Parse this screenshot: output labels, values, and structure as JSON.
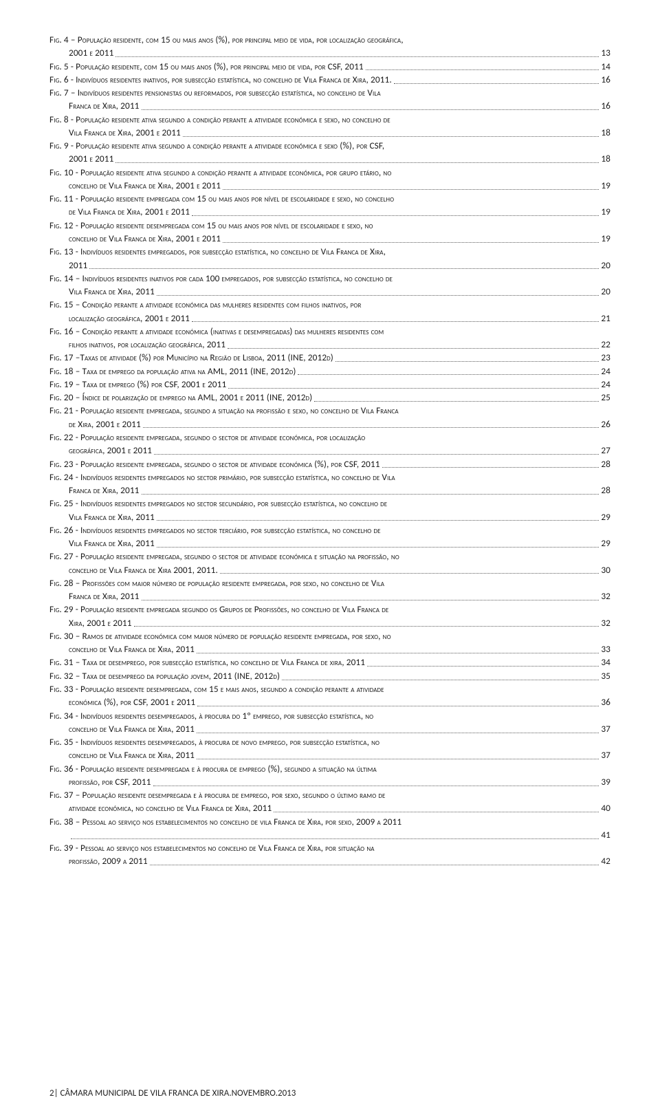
{
  "footer": {
    "page_num": "2",
    "separator": "|",
    "text": "CÂMARA MUNICIPAL DE VILA FRANCA DE XIRA.NOVEMBRO.2013"
  },
  "figures": [
    {
      "label": "Fig. 4 – População residente, com 15 ou mais anos (%), por principal meio de vida, por localização geográfica,",
      "cont": "2001 e 2011",
      "page": "13"
    },
    {
      "label": "Fig. 5 - População residente, com 15 ou mais anos (%), por principal meio de vida, por CSF, 2011",
      "page": "14"
    },
    {
      "label": "Fig. 6 - Indivíduos residentes inativos, por subsecção estatística, no concelho de Vila Franca de Xira, 2011.",
      "page": "16"
    },
    {
      "label": "Fig. 7 – Indivíduos residentes pensionistas ou reformados, por subsecção estatística, no concelho de Vila",
      "cont": "Franca de Xira, 2011",
      "page": "16"
    },
    {
      "label": "Fig. 8 - População residente ativa segundo a condição perante a atividade económica e sexo, no concelho de",
      "cont": "Vila Franca de Xira, 2001 e 2011",
      "page": "18"
    },
    {
      "label": "Fig. 9 - População residente ativa segundo a condição perante a atividade económica e sexo (%), por CSF,",
      "cont": "2001 e 2011",
      "page": "18"
    },
    {
      "label": "Fig. 10 - População residente ativa segundo a condição perante a atividade económica, por grupo etário, no",
      "cont": "concelho de Vila Franca de Xira, 2001 e 2011",
      "page": "19"
    },
    {
      "label": "Fig. 11 - População residente empregada com 15 ou mais anos por nível de escolaridade e sexo, no concelho",
      "cont": "de Vila Franca de Xira, 2001 e 2011",
      "page": "19"
    },
    {
      "label": "Fig. 12 - População residente desempregada com 15 ou mais anos por nível de escolaridade e sexo, no",
      "cont": "concelho de Vila Franca de Xira, 2001 e 2011",
      "page": "19"
    },
    {
      "label": "Fig. 13 - Indivíduos residentes empregados, por subsecção estatística, no concelho de Vila Franca de Xira,",
      "cont": "2011",
      "page": "20"
    },
    {
      "label": "Fig. 14 – Indivíduos residentes inativos por cada 100 empregados, por subsecção estatística, no concelho de",
      "cont": "Vila Franca de Xira, 2011",
      "page": "20"
    },
    {
      "label": "Fig. 15 – Condição perante a atividade económica das mulheres residentes com filhos inativos, por",
      "cont": "localização geográfica, 2001 e 2011",
      "page": "21"
    },
    {
      "label": "Fig. 16 – Condição perante a atividade económica (inativas e desempregadas) das mulheres residentes com",
      "cont": "filhos inativos, por localização geográfica, 2011",
      "page": "22"
    },
    {
      "label": "Fig. 17 –Taxas de atividade (%) por Município na Região de Lisboa, 2011 (INE, 2012d)",
      "page": "23"
    },
    {
      "label": "Fig. 18 – Taxa de emprego da população ativa na AML, 2011 (INE, 2012d)",
      "page": "24"
    },
    {
      "label": "Fig. 19 – Taxa de emprego (%) por CSF, 2001 e 2011",
      "page": "24"
    },
    {
      "label": "Fig. 20 – Índice de polarização de emprego na AML, 2001 e 2011 (INE, 2012d)",
      "page": "25"
    },
    {
      "label": "Fig. 21 - População residente empregada, segundo a situação na profissão e sexo, no concelho de Vila Franca",
      "cont": "de Xira, 2001 e 2011",
      "page": "26"
    },
    {
      "label": "Fig. 22 - População residente empregada, segundo o sector de atividade económica, por localização",
      "cont": "geográfica, 2001 e 2011",
      "page": "27"
    },
    {
      "label": "Fig. 23 - População residente empregada, segundo o sector de atividade económica (%), por CSF, 2011",
      "page": "28"
    },
    {
      "label": "Fig. 24 - Indivíduos residentes empregados no sector primário, por subsecção estatística, no concelho de Vila",
      "cont": "Franca de Xira, 2011",
      "page": "28"
    },
    {
      "label": "Fig. 25 - Indivíduos residentes empregados no sector secundário, por subsecção estatística, no concelho de",
      "cont": "Vila Franca de Xira, 2011",
      "page": "29"
    },
    {
      "label": "Fig. 26 - Indivíduos residentes empregados no sector terciário, por subsecção estatística, no concelho de",
      "cont": "Vila Franca de Xira, 2011",
      "page": "29"
    },
    {
      "label": "Fig. 27 - População residente empregada, segundo o sector de atividade económica e situação na profissão, no",
      "cont": "concelho de Vila Franca de Xira 2001, 2011.",
      "page": "30"
    },
    {
      "label": "Fig. 28 – Profissões com maior número de população residente empregada, por sexo, no concelho de Vila",
      "cont": "Franca de Xira, 2011",
      "page": "32"
    },
    {
      "label": "Fig. 29 - População residente empregada segundo os Grupos de Profissões, no concelho de Vila Franca de",
      "cont": "Xira, 2001 e 2011",
      "page": "32"
    },
    {
      "label": "Fig. 30 – Ramos de atividade económica com maior número de população residente empregada, por sexo, no",
      "cont": "concelho de Vila Franca de Xira, 2011",
      "page": "33"
    },
    {
      "label": "Fig. 31 – Taxa de desemprego, por subsecção estatística, no concelho de Vila Franca de xira, 2011",
      "page": "34"
    },
    {
      "label": "Fig. 32 – Taxa de desemprego da população jovem, 2011 (INE, 2012d)",
      "page": "35"
    },
    {
      "label": "Fig. 33 - População residente desempregada, com 15 e mais anos, segundo a condição perante a atividade",
      "cont": "económica (%), por CSF, 2001 e 2011",
      "page": "36"
    },
    {
      "label": "Fig. 34 - Indivíduos residentes desempregados, à procura do 1º emprego, por subsecção estatística, no",
      "cont": "concelho de Vila Franca de Xira, 2011",
      "page": "37"
    },
    {
      "label": "Fig. 35 - Indivíduos residentes desempregados, à procura de novo emprego, por subsecção estatística, no",
      "cont": "concelho de Vila Franca de Xira, 2011",
      "page": "37"
    },
    {
      "label": "Fig. 36 - População residente desempregada e à procura de emprego (%), segundo a situação na última",
      "cont": "profissão, por CSF, 2011",
      "page": "39"
    },
    {
      "label": "Fig. 37 – População residente desempregada e à procura de emprego, por sexo, segundo o último ramo de",
      "cont": "atividade económica, no concelho de Vila Franca de Xira, 2011",
      "page": "40"
    },
    {
      "label": "Fig. 38 – Pessoal ao serviço nos estabelecimentos no concelho de vila Franca de Xira, por sexo, 2009 a 2011",
      "cont": "",
      "page": "41"
    },
    {
      "label": "Fig. 39 - Pessoal ao serviço nos estabelecimentos no concelho de Vila Franca de Xira, por situação na",
      "cont": "profissão, 2009 a 2011",
      "page": "42"
    }
  ]
}
